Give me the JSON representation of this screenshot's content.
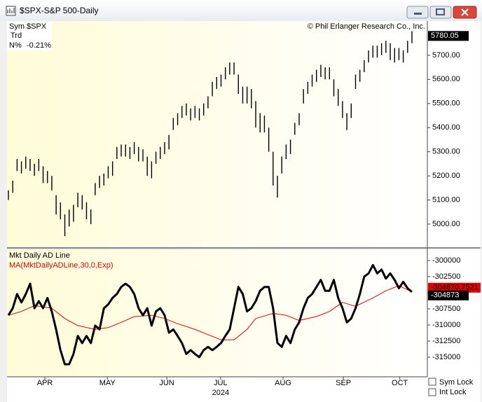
{
  "window": {
    "title": "$SPX-S&P 500-Daily"
  },
  "controls": {
    "sym_lock": "Sym Lock",
    "int_lock": "Int Lock"
  },
  "chart_data": [
    {
      "type": "ohlc",
      "info": {
        "sym_label": "Sym",
        "sym": "$SPX",
        "trd_label": "Trd",
        "n_label": "N%",
        "n_value": "-0.21%"
      },
      "copyright": "© Phil Erlanger Research Co., Inc.",
      "last_value": 5780.05,
      "color": "#000000",
      "x": [
        0,
        1,
        2,
        3,
        4,
        5,
        6,
        7,
        8,
        9,
        10,
        11,
        12,
        13,
        14,
        15,
        16,
        17,
        18,
        19,
        20,
        21,
        22,
        23,
        24,
        25,
        26,
        27,
        28,
        29,
        30,
        31,
        32,
        33,
        34,
        35,
        36,
        37,
        38,
        39,
        40,
        41,
        42,
        43,
        44,
        45,
        46,
        47,
        48,
        49,
        50,
        51,
        52,
        53,
        54,
        55,
        56,
        57,
        58,
        59,
        60,
        61,
        62,
        63,
        64,
        65,
        66,
        67,
        68,
        69,
        70,
        71,
        72,
        73,
        74,
        75,
        76,
        77,
        78,
        79,
        80,
        81,
        82,
        83,
        84,
        85,
        86,
        87,
        88,
        89,
        90,
        91,
        92,
        93
      ],
      "high": [
        5140,
        5180,
        5270,
        5260,
        5280,
        5270,
        5250,
        5270,
        5240,
        5220,
        5200,
        5120,
        5090,
        5040,
        5060,
        5080,
        5130,
        5120,
        5090,
        5060,
        5170,
        5200,
        5210,
        5240,
        5260,
        5320,
        5330,
        5330,
        5320,
        5340,
        5320,
        5310,
        5280,
        5260,
        5300,
        5320,
        5340,
        5370,
        5440,
        5460,
        5490,
        5500,
        5480,
        5490,
        5480,
        5500,
        5530,
        5590,
        5610,
        5620,
        5650,
        5670,
        5670,
        5620,
        5570,
        5570,
        5560,
        5510,
        5460,
        5450,
        5400,
        5300,
        5200,
        5280,
        5330,
        5350,
        5420,
        5460,
        5560,
        5590,
        5620,
        5640,
        5660,
        5650,
        5650,
        5600,
        5560,
        5510,
        5460,
        5500,
        5620,
        5640,
        5680,
        5720,
        5740,
        5740,
        5750,
        5760,
        5750,
        5730,
        5730,
        5720,
        5760,
        5800
      ],
      "low": [
        5100,
        5130,
        5220,
        5210,
        5230,
        5220,
        5200,
        5220,
        5170,
        5170,
        5140,
        5040,
        5020,
        4950,
        4990,
        5010,
        5070,
        5060,
        5020,
        5000,
        5120,
        5150,
        5160,
        5190,
        5200,
        5270,
        5280,
        5280,
        5270,
        5290,
        5260,
        5260,
        5200,
        5190,
        5250,
        5270,
        5290,
        5310,
        5390,
        5410,
        5440,
        5450,
        5430,
        5440,
        5430,
        5450,
        5480,
        5530,
        5560,
        5570,
        5600,
        5620,
        5620,
        5540,
        5500,
        5500,
        5480,
        5400,
        5380,
        5380,
        5300,
        5160,
        5110,
        5210,
        5270,
        5290,
        5370,
        5410,
        5500,
        5540,
        5570,
        5590,
        5610,
        5600,
        5600,
        5530,
        5490,
        5440,
        5390,
        5440,
        5560,
        5590,
        5630,
        5670,
        5690,
        5690,
        5700,
        5710,
        5680,
        5670,
        5680,
        5670,
        5710,
        5750
      ],
      "xlim": [
        0,
        93
      ],
      "xticks": [
        {
          "value": 8.4,
          "label": "APR"
        },
        {
          "value": 22.8,
          "label": "MAY"
        },
        {
          "value": 36.5,
          "label": "JUN"
        },
        {
          "value": 48.9,
          "label": "JUL"
        },
        {
          "value": 63.3,
          "label": "AUG"
        },
        {
          "value": 77.2,
          "label": "SEP"
        },
        {
          "value": 90.2,
          "label": "OCT"
        }
      ],
      "year_label": "2024",
      "ylim": [
        4907,
        5842
      ],
      "yticks": [
        {
          "value": 5000,
          "label": "5000.00"
        },
        {
          "value": 5100,
          "label": "5100.00"
        },
        {
          "value": 5200,
          "label": "5200.00"
        },
        {
          "value": 5300,
          "label": "5300.00"
        },
        {
          "value": 5400,
          "label": "5400.00"
        },
        {
          "value": 5500,
          "label": "5500.00"
        },
        {
          "value": 5600,
          "label": "5600.00"
        },
        {
          "value": 5700,
          "label": "5700.00"
        }
      ]
    },
    {
      "type": "line",
      "x": [
        0,
        1,
        2,
        3,
        4,
        5,
        6,
        7,
        8,
        9,
        10,
        11,
        12,
        13,
        14,
        15,
        16,
        17,
        18,
        19,
        20,
        21,
        22,
        23,
        24,
        25,
        26,
        27,
        28,
        29,
        30,
        31,
        32,
        33,
        34,
        35,
        36,
        37,
        38,
        39,
        40,
        41,
        42,
        43,
        44,
        45,
        46,
        47,
        48,
        49,
        50,
        51,
        52,
        53,
        54,
        55,
        56,
        57,
        58,
        59,
        60,
        61,
        62,
        63,
        64,
        65,
        66,
        67,
        68,
        69,
        70,
        71,
        72,
        73,
        74,
        75,
        76,
        77,
        78,
        79,
        80,
        81,
        82,
        83,
        84,
        85,
        86,
        87,
        88,
        89,
        90,
        91,
        92,
        93
      ],
      "xlim": [
        0,
        93
      ],
      "ylim": [
        -318043,
        -298370
      ],
      "yticks": [
        -300000,
        -302500,
        -305000,
        -307500,
        -310000,
        -312500,
        -315000
      ],
      "series": [
        {
          "name": "Mkt Daily AD Line",
          "color": "#000000",
          "last_value": -304873,
          "values": [
            -308500,
            -307400,
            -305200,
            -306500,
            -305200,
            -303600,
            -307400,
            -306300,
            -307400,
            -305800,
            -307900,
            -310700,
            -313900,
            -316100,
            -316100,
            -314500,
            -311700,
            -312800,
            -311700,
            -312800,
            -310100,
            -310700,
            -307400,
            -306800,
            -305800,
            -305200,
            -304100,
            -303600,
            -304100,
            -305200,
            -307400,
            -308500,
            -307400,
            -310100,
            -307900,
            -307400,
            -308500,
            -311200,
            -310700,
            -311700,
            -312800,
            -314500,
            -313900,
            -314500,
            -315000,
            -313900,
            -313400,
            -313900,
            -313400,
            -312800,
            -311700,
            -310700,
            -307400,
            -304100,
            -305200,
            -307900,
            -307400,
            -306300,
            -304700,
            -304100,
            -304100,
            -307400,
            -312800,
            -313400,
            -311700,
            -312800,
            -310700,
            -309600,
            -307400,
            -305800,
            -305200,
            -304100,
            -303000,
            -304700,
            -304700,
            -303000,
            -305800,
            -307400,
            -309600,
            -309000,
            -307400,
            -305200,
            -302500,
            -302000,
            -300700,
            -302000,
            -301400,
            -302800,
            -302000,
            -303000,
            -304300,
            -303300,
            -304300,
            -304873
          ]
        },
        {
          "name": "MA(MktDailyADLine,30,0,Exp)",
          "color": "#e00000",
          "last_value": -304870.7521,
          "x": [
            0,
            3,
            6,
            10,
            13,
            16,
            20,
            23,
            26,
            29,
            33,
            36,
            39,
            43,
            46,
            49,
            52,
            55,
            57,
            61,
            64,
            67,
            71,
            74,
            77,
            80,
            84,
            87,
            90,
            93
          ],
          "values": [
            -308500,
            -307900,
            -307000,
            -307400,
            -309000,
            -310100,
            -310700,
            -310400,
            -309600,
            -308700,
            -308500,
            -309000,
            -309800,
            -310700,
            -311500,
            -312300,
            -312300,
            -310700,
            -309000,
            -308200,
            -308500,
            -309300,
            -308700,
            -307900,
            -306500,
            -307100,
            -305800,
            -304700,
            -303900,
            -304870.7521
          ]
        }
      ]
    }
  ]
}
